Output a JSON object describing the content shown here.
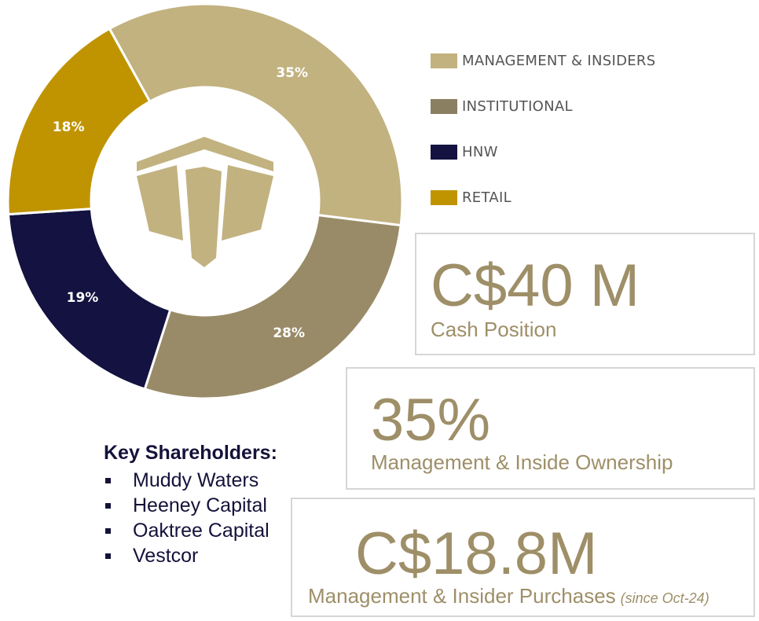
{
  "chart_data": {
    "type": "pie",
    "variant": "donut",
    "categories": [
      "MANAGEMENT & INSIDERS",
      "INSTITUTIONAL",
      "HNW",
      "RETAIL"
    ],
    "values": [
      35,
      28,
      19,
      18
    ],
    "labels": [
      "35%",
      "28%",
      "19%",
      "18%"
    ],
    "colors": [
      "#c2b280",
      "#9a8b68",
      "#131240",
      "#c09400"
    ],
    "legend_position": "right",
    "title": ""
  },
  "legend": {
    "items": [
      {
        "label": "MANAGEMENT & INSIDERS",
        "color": "#c2b280"
      },
      {
        "label": "INSTITUTIONAL",
        "color": "#8b7f62"
      },
      {
        "label": "HNW",
        "color": "#131240"
      },
      {
        "label": "RETAIL",
        "color": "#c09400"
      }
    ]
  },
  "stats": {
    "cash": {
      "value": "C$40 M",
      "caption": "Cash Position"
    },
    "ownership": {
      "value": "35%",
      "caption": "Management & Inside Ownership"
    },
    "purchases": {
      "value": "C$18.8M",
      "caption": "Management & Insider Purchases",
      "note": "(since Oct-24)"
    }
  },
  "shareholders": {
    "title": "Key Shareholders:",
    "items": [
      "Muddy Waters",
      "Heeney Capital",
      "Oaktree Capital",
      "Vestcor"
    ]
  },
  "logo_color": "#c2b280",
  "accent_color": "#9e8f68"
}
